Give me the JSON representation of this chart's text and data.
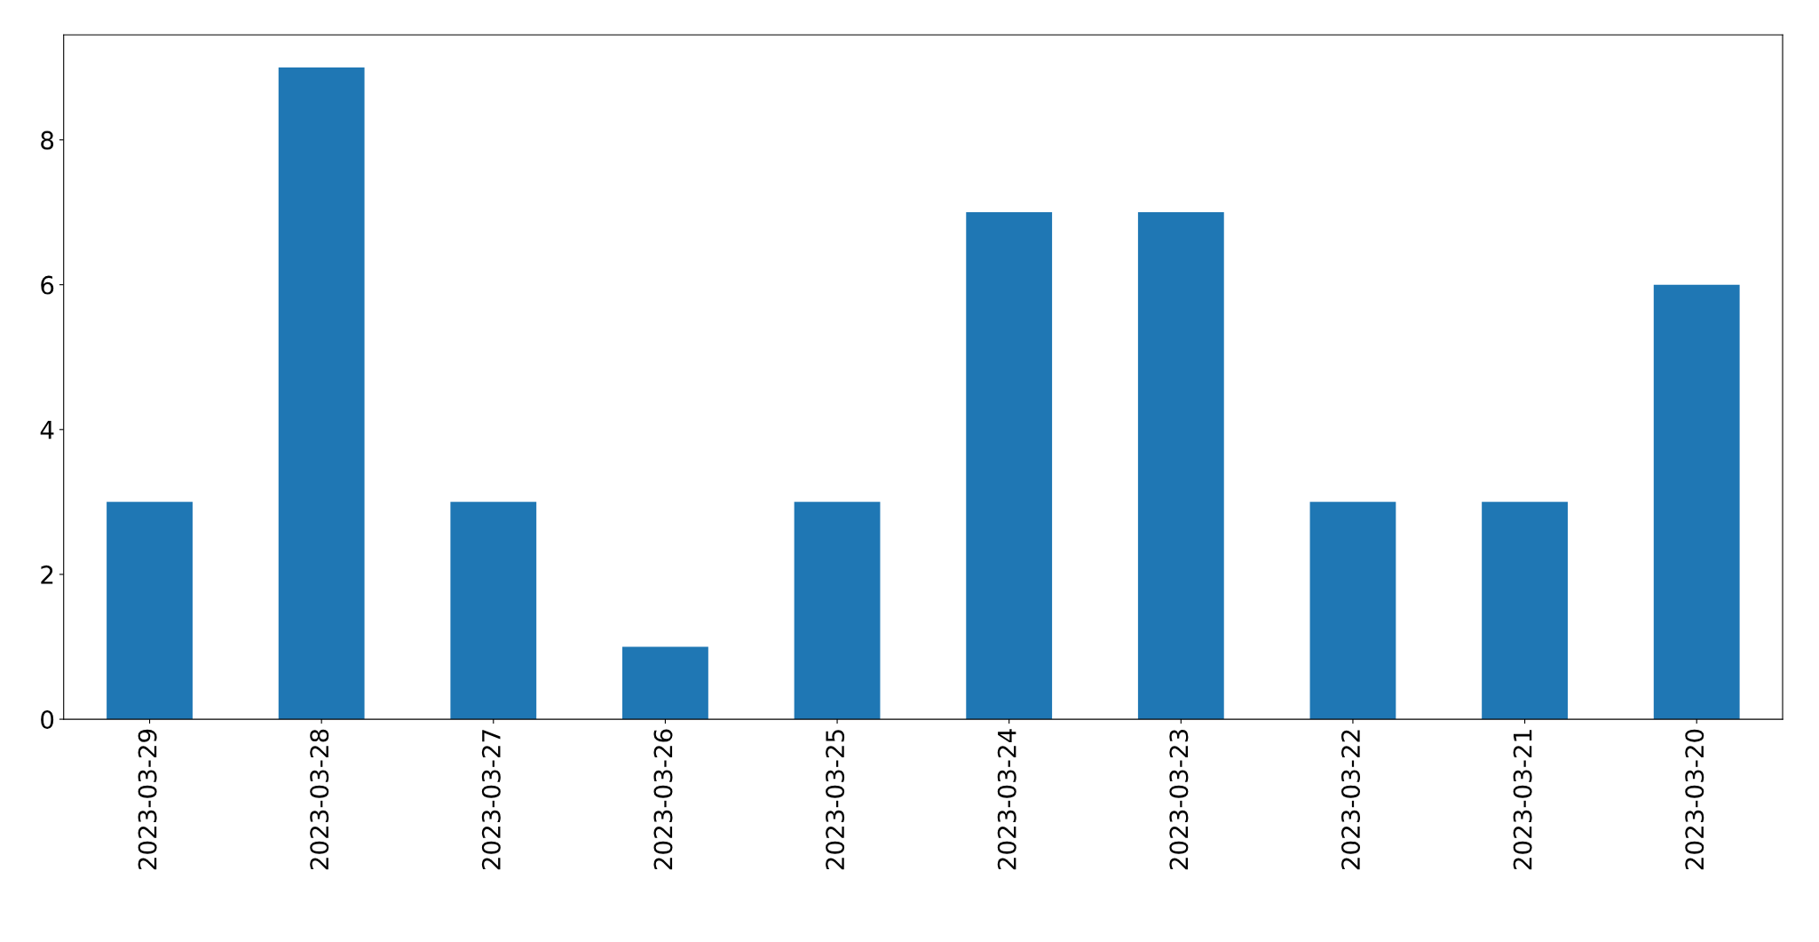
{
  "chart_data": {
    "type": "bar",
    "categories": [
      "2023-03-29",
      "2023-03-28",
      "2023-03-27",
      "2023-03-26",
      "2023-03-25",
      "2023-03-24",
      "2023-03-23",
      "2023-03-22",
      "2023-03-21",
      "2023-03-20"
    ],
    "values": [
      3,
      9,
      3,
      1,
      3,
      7,
      7,
      3,
      3,
      6
    ],
    "color": "#1f77b4",
    "ylim": [
      0,
      9.45
    ],
    "yticks": [
      0,
      2,
      4,
      6,
      8
    ],
    "grid": false,
    "legend": false
  }
}
